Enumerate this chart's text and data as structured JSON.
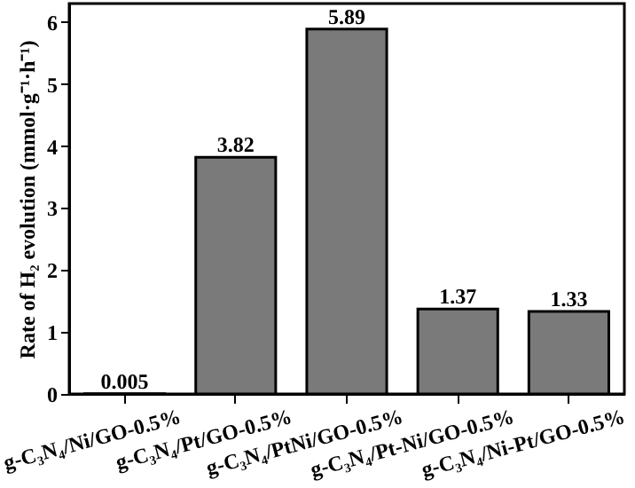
{
  "chart_data": {
    "type": "bar",
    "ylabel": "Rate of H₂ evolution (mmol·g⁻¹·h⁻¹)",
    "categories": [
      "g-C₃N₄/Ni/GO-0.5%",
      "g-C₃N₄/Pt/GO-0.5%",
      "g-C₃N₄/PtNi/GO-0.5%",
      "g-C₃N₄/Pt-Ni/GO-0.5%",
      "g-C₃N₄/Ni-Pt/GO-0.5%"
    ],
    "values": [
      0.005,
      3.82,
      5.89,
      1.37,
      1.33
    ],
    "color": "#7a7a7a",
    "ylim": [
      0,
      6.3
    ],
    "yticks": [
      0,
      1,
      2,
      3,
      4,
      5,
      6
    ],
    "grid": false,
    "data_labels": true
  }
}
